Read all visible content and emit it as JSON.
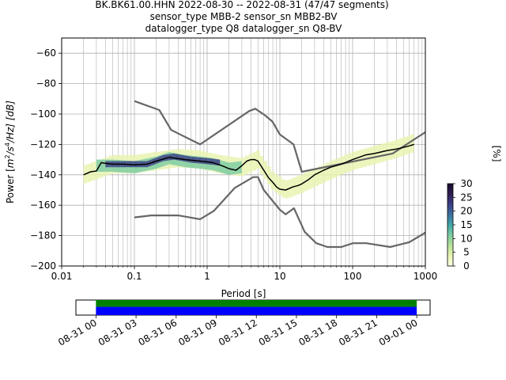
{
  "chart_data": {
    "type": "heatmap",
    "title": {
      "line1": "BK.BK61.00.HHN   2022-08-30 -- 2022-08-31  (47/47 segments)",
      "line2": "sensor_type MBB-2 sensor_sn MBB2-BV",
      "line3": "datalogger_type Q8 datalogger_sn Q8-BV"
    },
    "xlabel": "Period [s]",
    "ylabel_parts": {
      "pre": "Power [",
      "m": "m",
      "exp2": "2",
      "s": "/s",
      "exp4": "4",
      "hz": "/Hz] [dB]"
    },
    "x_scale": "log",
    "xlim": [
      0.01,
      1000
    ],
    "ylim": [
      -200,
      -50
    ],
    "x_ticks": [
      {
        "value": 0.01,
        "label": "0.01"
      },
      {
        "value": 0.1,
        "label": "0.1"
      },
      {
        "value": 1,
        "label": "1"
      },
      {
        "value": 10,
        "label": "10"
      },
      {
        "value": 100,
        "label": "100"
      },
      {
        "value": 1000,
        "label": "1000"
      }
    ],
    "y_ticks": [
      {
        "value": -60,
        "label": "−60"
      },
      {
        "value": -80,
        "label": "−80"
      },
      {
        "value": -100,
        "label": "−100"
      },
      {
        "value": -120,
        "label": "−120"
      },
      {
        "value": -140,
        "label": "−140"
      },
      {
        "value": -160,
        "label": "−160"
      },
      {
        "value": -180,
        "label": "−180"
      },
      {
        "value": -200,
        "label": "−200"
      }
    ],
    "grid": true,
    "series": [
      {
        "role": "high-noise-model",
        "color": "#666666",
        "x": [
          0.1,
          0.22,
          0.32,
          0.8,
          3.8,
          4.6,
          6.3,
          7.9,
          10,
          15.4,
          20,
          354.8,
          1000
        ],
        "y": [
          -91.5,
          -97.4,
          -110.5,
          -120,
          -98,
          -96.5,
          -101,
          -105,
          -113.5,
          -120,
          -138,
          -126,
          -112
        ]
      },
      {
        "role": "low-noise-model",
        "color": "#666666",
        "x": [
          0.1,
          0.17,
          0.4,
          0.8,
          1.24,
          2.4,
          4.3,
          5,
          6,
          10,
          12,
          15.6,
          21.9,
          31.6,
          45,
          70,
          101,
          154,
          328,
          600,
          1000
        ],
        "y": [
          -168,
          -166.7,
          -166.7,
          -169.2,
          -163.7,
          -148.6,
          -141.5,
          -141.5,
          -150,
          -163,
          -166,
          -162,
          -177.5,
          -185,
          -187.5,
          -187.5,
          -185,
          -185,
          -187.5,
          -184.4,
          -178
        ]
      },
      {
        "role": "mode",
        "color": "#000000",
        "x": [
          0.02,
          0.025,
          0.03,
          0.035,
          0.04,
          0.05,
          0.07,
          0.1,
          0.15,
          0.2,
          0.3,
          0.5,
          0.8,
          1.2,
          1.6,
          2,
          2.5,
          3,
          3.5,
          4,
          4.5,
          5,
          6,
          7,
          8,
          9,
          10,
          12,
          15,
          18,
          20,
          25,
          30,
          40,
          50,
          70,
          100,
          150,
          200,
          300,
          400,
          500,
          600,
          700
        ],
        "y": [
          -140,
          -138,
          -137.5,
          -132,
          -132.5,
          -133,
          -133,
          -133.5,
          -133,
          -131,
          -128.5,
          -130,
          -131,
          -132,
          -134,
          -136,
          -137,
          -134,
          -131,
          -130,
          -130,
          -131,
          -137,
          -142,
          -145,
          -148,
          -149.5,
          -150,
          -148,
          -147,
          -146,
          -143,
          -140,
          -137,
          -135,
          -133,
          -130,
          -127,
          -126,
          -124,
          -123,
          -122,
          -121,
          -120
        ]
      }
    ],
    "density": {
      "bands": [
        {
          "x": [
            0.02,
            0.03,
            0.05,
            0.1,
            0.2,
            0.4,
            0.8,
            1.5,
            3,
            5,
            8,
            12,
            20,
            50,
            100,
            200,
            400,
            700
          ],
          "y": [
            -140,
            -137,
            -133,
            -133,
            -131,
            -129,
            -130,
            -133,
            -135,
            -130,
            -144,
            -150,
            -146,
            -137,
            -131,
            -127,
            -123,
            -119
          ],
          "half_width_db": 6,
          "value_pct": 3
        },
        {
          "x": [
            0.03,
            0.05,
            0.1,
            0.2,
            0.3,
            0.5,
            0.8,
            1.2,
            2,
            3
          ],
          "y": [
            -134,
            -134,
            -135,
            -132,
            -129,
            -131,
            -132,
            -133,
            -136,
            -135
          ],
          "half_width_db": 4,
          "value_pct": 12
        },
        {
          "x": [
            0.04,
            0.08,
            0.15,
            0.25,
            0.35,
            0.6,
            1,
            1.5
          ],
          "y": [
            -133,
            -133,
            -133,
            -129,
            -128,
            -130,
            -131,
            -132
          ],
          "half_width_db": 2,
          "value_pct": 22
        }
      ]
    },
    "colorbar": {
      "label": "[%]",
      "range": [
        0,
        30
      ],
      "ticks": [
        {
          "value": 0,
          "label": "0"
        },
        {
          "value": 5,
          "label": "5"
        },
        {
          "value": 10,
          "label": "10"
        },
        {
          "value": 15,
          "label": "15"
        },
        {
          "value": 20,
          "label": "20"
        },
        {
          "value": 25,
          "label": "25"
        },
        {
          "value": 30,
          "label": "30"
        }
      ],
      "colors": [
        "#ffffe5",
        "#e7f3b0",
        "#b7e19a",
        "#7ccba2",
        "#41a6a6",
        "#3d6fa0",
        "#3c3e86",
        "#2d1e4f",
        "#1a0b2e"
      ]
    },
    "timeline": {
      "range_hours": [
        -1.5,
        25
      ],
      "ticks": [
        {
          "hour": 0,
          "label": "08-31 00"
        },
        {
          "hour": 3,
          "label": "08-31 03"
        },
        {
          "hour": 6,
          "label": "08-31 06"
        },
        {
          "hour": 9,
          "label": "08-31 09"
        },
        {
          "hour": 12,
          "label": "08-31 12"
        },
        {
          "hour": 15,
          "label": "08-31 15"
        },
        {
          "hour": 18,
          "label": "08-31 18"
        },
        {
          "hour": 21,
          "label": "08-31 21"
        },
        {
          "hour": 24,
          "label": "09-01 00"
        }
      ],
      "coverage": [
        {
          "start": 0,
          "end": 24,
          "color": "#0000ff",
          "row": "lower"
        },
        {
          "start": 0,
          "end": 24,
          "color": "#008000",
          "row": "upper"
        }
      ]
    }
  }
}
